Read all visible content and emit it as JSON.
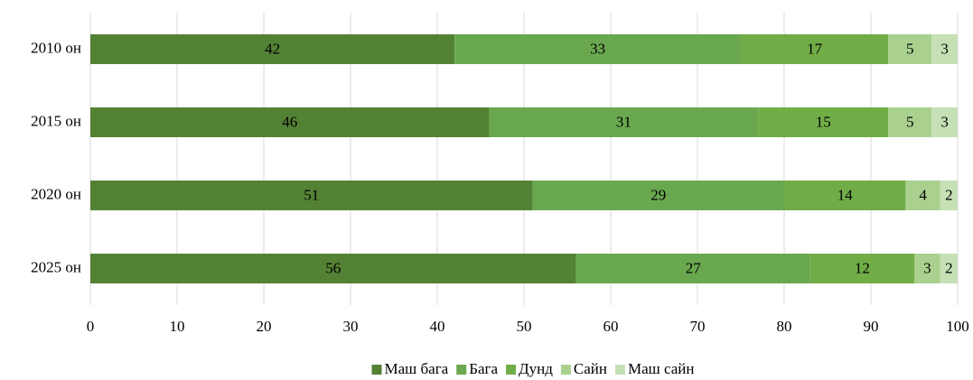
{
  "chart_data": {
    "type": "stacked_bar_horizontal",
    "categories": [
      "2010 он",
      "2015 он",
      "2020 он",
      "2025 он"
    ],
    "series": [
      {
        "name": "Маш бага",
        "color": "#548235",
        "values": [
          42,
          46,
          51,
          56
        ]
      },
      {
        "name": "Бага",
        "color": "#6aa84f",
        "values": [
          33,
          31,
          29,
          27
        ]
      },
      {
        "name": "Дунд",
        "color": "#70ad47",
        "values": [
          17,
          15,
          14,
          12
        ]
      },
      {
        "name": "Сайн",
        "color": "#a9d08e",
        "values": [
          5,
          5,
          4,
          3
        ]
      },
      {
        "name": "Маш сайн",
        "color": "#c5e0b4",
        "values": [
          3,
          3,
          2,
          2
        ]
      }
    ],
    "xlim": [
      0,
      100
    ],
    "xticks": [
      0,
      10,
      20,
      30,
      40,
      50,
      60,
      70,
      80,
      90,
      100
    ],
    "grid": true,
    "legend": "bottom"
  }
}
